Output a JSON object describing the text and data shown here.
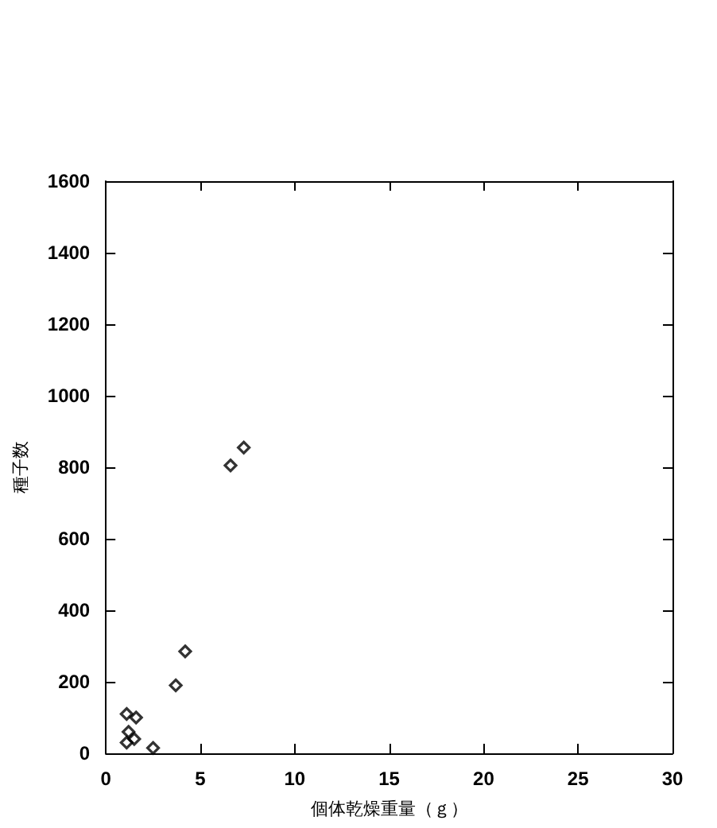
{
  "chart_data": {
    "type": "scatter",
    "xlabel": "個体乾燥重量（ｇ）",
    "ylabel": "種子数",
    "x": [
      1.1,
      1.6,
      1.2,
      1.5,
      1.1,
      2.5,
      3.7,
      4.2,
      6.6,
      7.3
    ],
    "values": [
      110,
      100,
      60,
      40,
      30,
      15,
      190,
      285,
      805,
      855
    ],
    "color": "#000000",
    "marker": "diamond",
    "xlim": [
      0,
      30
    ],
    "xticks": [
      0,
      5,
      10,
      15,
      20,
      25,
      30
    ],
    "ylim": [
      0,
      1600
    ],
    "yticks": [
      0,
      200,
      400,
      600,
      800,
      1000,
      1200,
      1400,
      1600
    ]
  }
}
